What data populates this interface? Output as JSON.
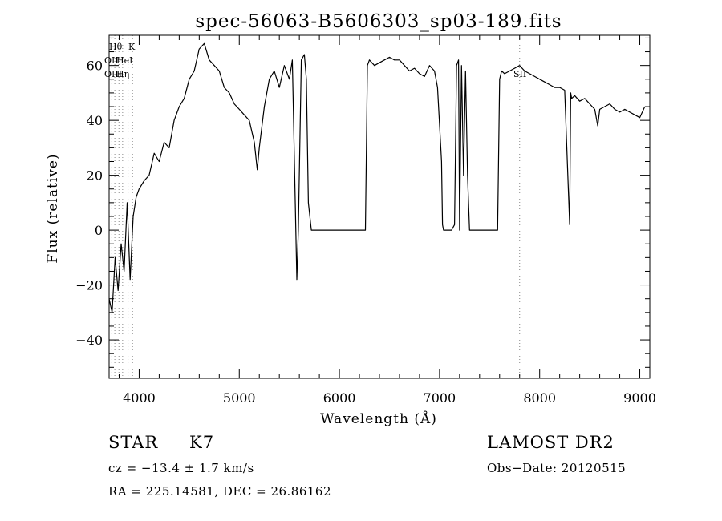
{
  "chart_data": {
    "type": "line",
    "title": "spec-56063-B5606303_sp03-189.fits",
    "xlabel": "Wavelength (Å)",
    "ylabel": "Flux (relative)",
    "xlim": [
      3700,
      9100
    ],
    "ylim": [
      -54,
      71
    ],
    "xticks": [
      4000,
      5000,
      6000,
      7000,
      8000,
      9000
    ],
    "yticks": [
      -40,
      -20,
      0,
      20,
      40,
      60
    ],
    "grid": false,
    "line_color": "#000000",
    "series": [
      {
        "x": [
          3700,
          3730,
          3760,
          3790,
          3820,
          3850,
          3880,
          3910,
          3940,
          3970,
          4000,
          4050,
          4100,
          4150,
          4200,
          4250,
          4300,
          4350,
          4400,
          4450,
          4500,
          4550,
          4600,
          4650,
          4700,
          4750,
          4800,
          4850,
          4900,
          4950,
          5000,
          5050,
          5100,
          5150,
          5180,
          5200,
          5250,
          5300,
          5350,
          5400,
          5450,
          5500,
          5530,
          5560,
          5575,
          5590,
          5620,
          5650,
          5670,
          5690,
          5720,
          5800,
          6000,
          6200,
          6260,
          6280,
          6300,
          6350,
          6400,
          6450,
          6500,
          6550,
          6600,
          6650,
          6700,
          6750,
          6800,
          6850,
          6900,
          6950,
          6980,
          7020,
          7030,
          7040,
          7050,
          7080,
          7120,
          7150,
          7170,
          7190,
          7200,
          7220,
          7240,
          7260,
          7280,
          7300,
          7350,
          7500,
          7580,
          7600,
          7620,
          7650,
          7700,
          7750,
          7800,
          7850,
          7900,
          7950,
          8000,
          8050,
          8100,
          8150,
          8200,
          8250,
          8300,
          8310,
          8320,
          8350,
          8400,
          8450,
          8500,
          8550,
          8580,
          8600,
          8650,
          8700,
          8750,
          8800,
          8850,
          8900,
          8950,
          9000,
          9050
        ],
        "y": [
          -25,
          -30,
          -10,
          -22,
          -5,
          -15,
          10,
          -18,
          5,
          12,
          15,
          18,
          20,
          28,
          25,
          32,
          30,
          40,
          45,
          48,
          55,
          58,
          66,
          68,
          62,
          60,
          58,
          52,
          50,
          46,
          44,
          42,
          40,
          32,
          22,
          30,
          45,
          55,
          58,
          52,
          60,
          55,
          62,
          8,
          -18,
          0,
          62,
          64,
          55,
          10,
          0,
          0,
          0,
          0,
          0,
          60,
          62,
          60,
          61,
          62,
          63,
          62,
          62,
          60,
          58,
          59,
          57,
          56,
          60,
          58,
          52,
          25,
          2,
          0,
          0,
          0,
          0,
          2,
          60,
          62,
          0,
          60,
          20,
          58,
          20,
          0,
          0,
          0,
          0,
          55,
          58,
          57,
          58,
          59,
          60,
          58,
          57,
          56,
          55,
          54,
          53,
          52,
          52,
          51,
          2,
          50,
          48,
          49,
          47,
          48,
          46,
          44,
          38,
          44,
          45,
          46,
          44,
          43,
          44,
          43,
          42,
          41,
          45
        ]
      }
    ],
    "line_labels": [
      {
        "label": "Hθ",
        "x": 3798
      },
      {
        "label": "K",
        "x": 3934
      },
      {
        "label": "OII",
        "x": 3727
      },
      {
        "label": "HeI",
        "x": 3889
      },
      {
        "label": "OIII",
        "x": 3757
      },
      {
        "label": "Hη",
        "x": 3835
      },
      {
        "label": "SII",
        "x": 7800
      }
    ]
  },
  "footer": {
    "object_type": "STAR",
    "subclass": "K7",
    "survey": "LAMOST DR2",
    "cz": "cz = −13.4 ± 1.7 km/s",
    "obs_date": "Obs−Date: 20120515",
    "coords": "RA = 225.14581, DEC =  26.86162"
  }
}
